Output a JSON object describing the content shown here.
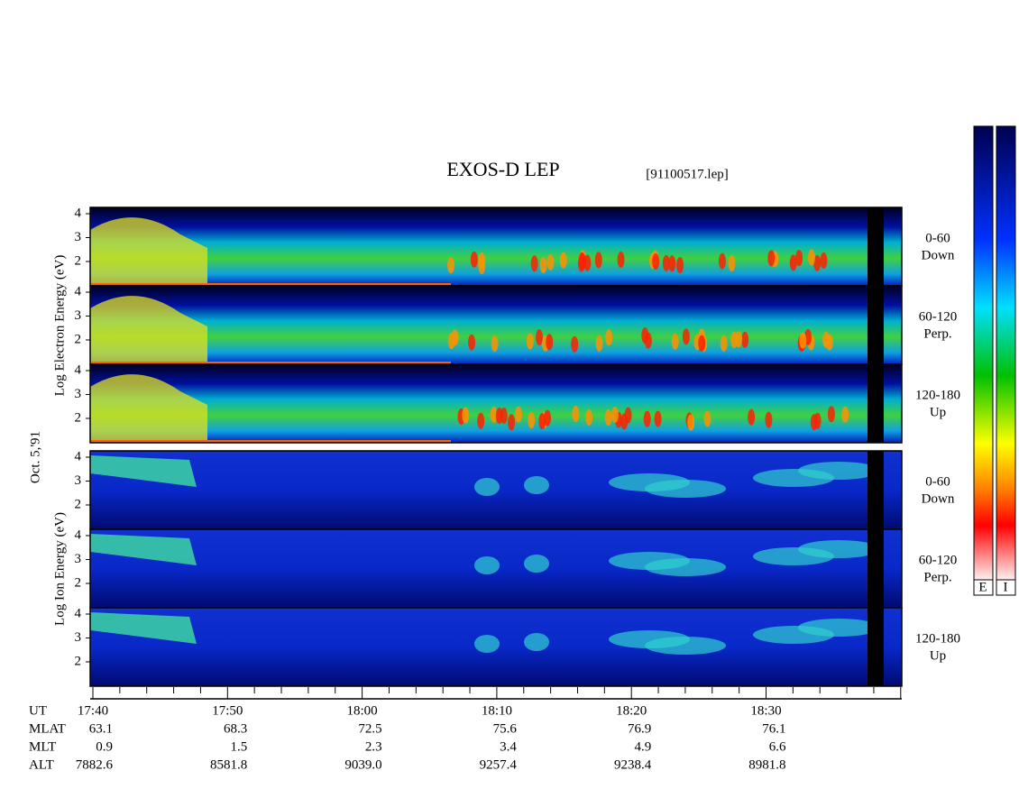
{
  "header": {
    "title": "EXOS-D LEP",
    "file": "[91100517.lep]"
  },
  "y_labels": {
    "electron": "Log  Electron  Energy (eV)",
    "date": "Oct. 5,'91",
    "ion": "Log  Ion  Energy (eV)"
  },
  "panels": [
    {
      "ticks": [
        "4",
        "3",
        "2"
      ],
      "angle": "0-60",
      "direction": "Down"
    },
    {
      "ticks": [
        "4",
        "3",
        "2"
      ],
      "angle": "60-120",
      "direction": "Perp."
    },
    {
      "ticks": [
        "4",
        "3",
        "2"
      ],
      "angle": "120-180",
      "direction": "Up"
    },
    {
      "ticks": [
        "4",
        "3",
        "2"
      ],
      "angle": "0-60",
      "direction": "Down"
    },
    {
      "ticks": [
        "4",
        "3",
        "2"
      ],
      "angle": "60-120",
      "direction": "Perp."
    },
    {
      "ticks": [
        "4",
        "3",
        "2"
      ],
      "angle": "120-180",
      "direction": "Up"
    }
  ],
  "ephemeris": [
    {
      "label": "UT",
      "values": [
        "17:40",
        "17:50",
        "18:00",
        "18:10",
        "18:20",
        "18:30"
      ]
    },
    {
      "label": "MLAT",
      "values": [
        "63.1",
        "68.3",
        "72.5",
        "75.6",
        "76.9",
        "76.1"
      ]
    },
    {
      "label": "MLT",
      "values": [
        "0.9",
        "1.5",
        "2.3",
        "3.4",
        "4.9",
        "6.6"
      ]
    },
    {
      "label": "ALT",
      "values": [
        "7882.6",
        "8581.8",
        "9039.0",
        "9257.4",
        "9238.4",
        "8981.8"
      ]
    }
  ],
  "colorbar": {
    "labels": [
      "E",
      "I"
    ]
  }
}
